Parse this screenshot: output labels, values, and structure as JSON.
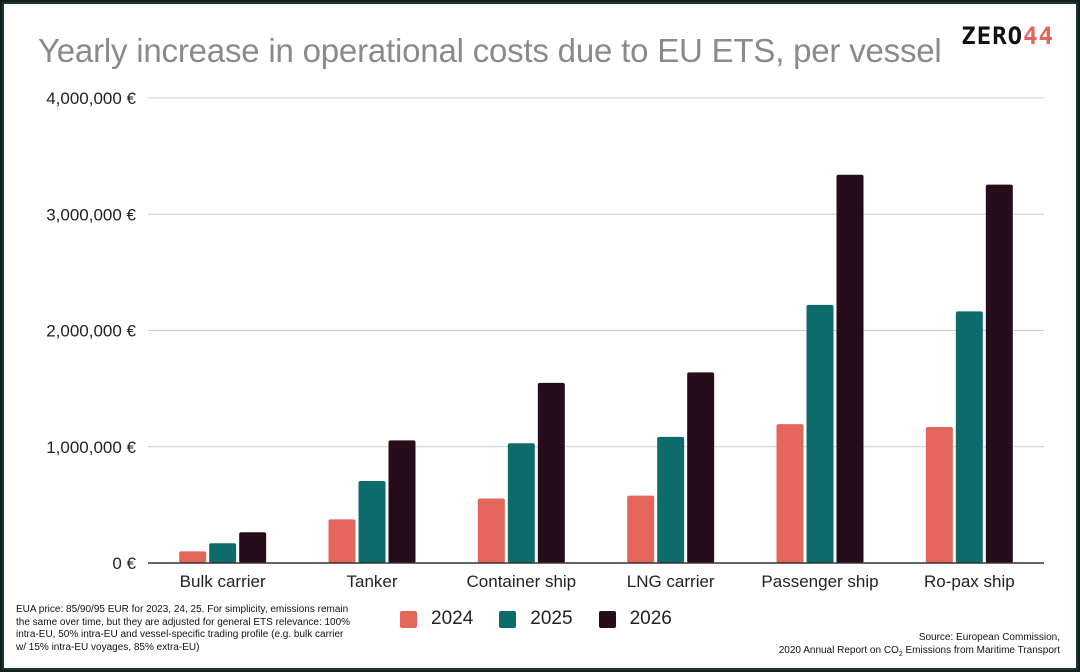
{
  "title": "Yearly increase in operational costs due to EU ETS, per vessel",
  "logo": {
    "part1": "ZERO",
    "part2": "44"
  },
  "colors": {
    "2024": "#e4665b",
    "2025": "#0e6b6b",
    "2026": "#270d1b",
    "grid": "#cccccc",
    "axis": "#333333"
  },
  "footnote": "EUA price: 85/90/95 EUR for 2023, 24, 25. For simplicity, emissions remain the same over time, but they are adjusted for general ETS relevance: 100% intra-EU, 50% intra-EU and vessel-specific trading profile (e.g. bulk carrier w/ 15% intra-EU voyages, 85% extra-EU)",
  "source": {
    "line1": "Source: European Commission,",
    "line2_pre": "2020 Annual Report on CO",
    "line2_sub": "2",
    "line2_post": " Emissions from Maritime Transport"
  },
  "chart_data": {
    "type": "bar",
    "categories": [
      "Bulk carrier",
      "Tanker",
      "Container ship",
      "LNG carrier",
      "Passenger ship",
      "Ro-pax ship"
    ],
    "series": [
      {
        "name": "2024",
        "values": [
          100000,
          375000,
          555000,
          580000,
          1195000,
          1170000
        ]
      },
      {
        "name": "2025",
        "values": [
          170000,
          705000,
          1030000,
          1085000,
          2220000,
          2165000
        ]
      },
      {
        "name": "2026",
        "values": [
          265000,
          1055000,
          1550000,
          1640000,
          3340000,
          3255000
        ]
      }
    ],
    "yticks": [
      "0 €",
      "1,000,000 €",
      "2,000,000 €",
      "3,000,000 €",
      "4,000,000 €"
    ],
    "ylim": [
      0,
      4000000
    ],
    "grid": true,
    "legend_position": "bottom"
  }
}
